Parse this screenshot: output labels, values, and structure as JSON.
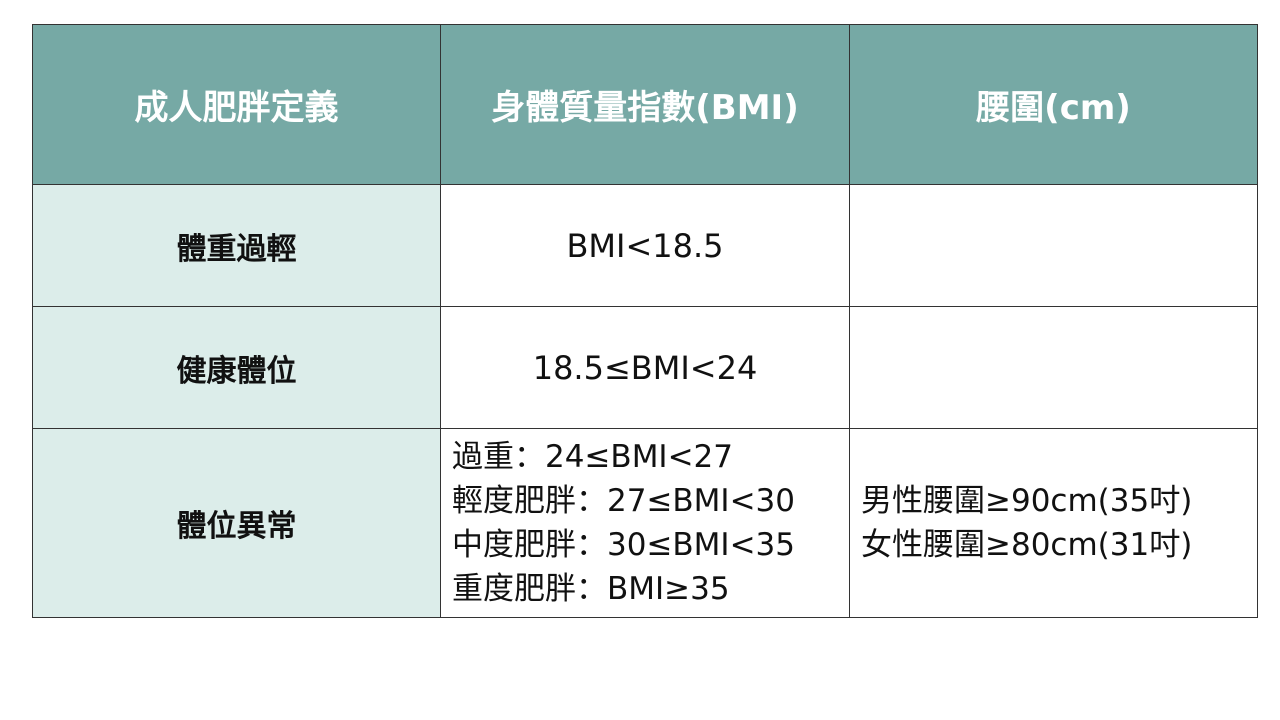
{
  "table": {
    "headers": [
      "成人肥胖定義",
      "身體質量指數(BMI)",
      "腰圍(cm)"
    ],
    "rows": [
      [
        "體重過輕",
        "BMI<18.5"
      ],
      [
        "健康體位",
        "18.5≤BMI<24"
      ],
      [
        "體位異常",
        [
          "過重：24≤BMI<27",
          "輕度肥胖：27≤BMI<30",
          "中度肥胖：30≤BMI<35",
          "重度肥胖：BMI≥35"
        ],
        [
          "男性腰圍≥90cm(35吋)",
          "女性腰圍≥80cm(31吋)"
        ]
      ]
    ]
  }
}
